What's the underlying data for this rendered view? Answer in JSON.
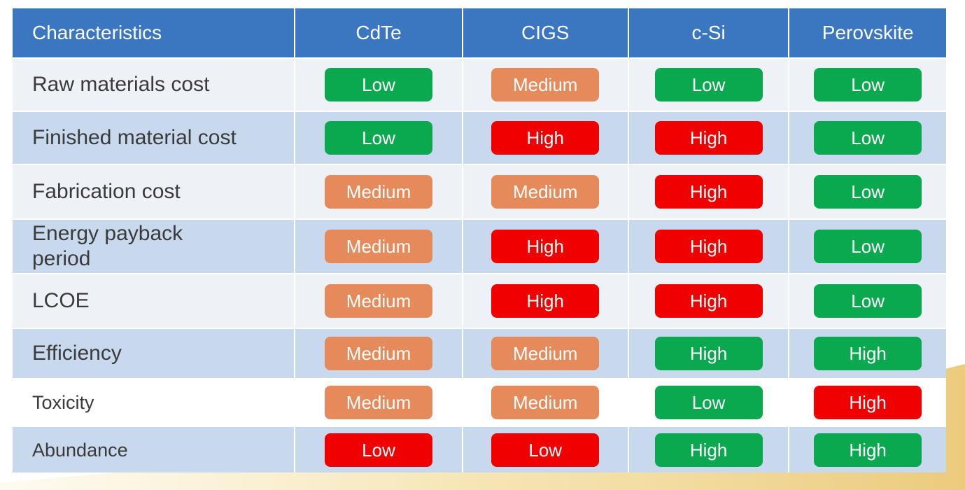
{
  "colors": {
    "header_bg": "#3a77c0",
    "row_light": "#eef2f7",
    "row_blue": "#c8d9ee",
    "row_white": "#ffffff",
    "Low": "#0aa84f",
    "Medium": "#e58a5a",
    "High": "#f00000"
  },
  "table": {
    "headers": [
      "Characteristics",
      "CdTe",
      "CIGS",
      "c-Si",
      "Perovskite"
    ],
    "rows": [
      {
        "label": "Raw materials cost",
        "values": [
          "Low",
          "Medium",
          "Low",
          "Low"
        ]
      },
      {
        "label": "Finished material cost",
        "values": [
          "Low",
          "High",
          "High",
          "Low"
        ]
      },
      {
        "label": "Fabrication cost",
        "values": [
          "Medium",
          "Medium",
          "High",
          "Low"
        ]
      },
      {
        "label": "Energy payback period",
        "values": [
          "Medium",
          "High",
          "High",
          "Low"
        ]
      },
      {
        "label": "LCOE",
        "values": [
          "Medium",
          "High",
          "High",
          "Low"
        ]
      },
      {
        "label": "Efficiency",
        "values": [
          "Medium",
          "Medium",
          "High",
          "High"
        ]
      },
      {
        "label": "Toxicity",
        "values": [
          "Medium",
          "Medium",
          "Low",
          "High"
        ]
      },
      {
        "label": "Abundance",
        "values": [
          "Low",
          "Low",
          "High",
          "High"
        ]
      }
    ],
    "pill_colors": [
      [
        "Low",
        "Medium",
        "Low",
        "Low"
      ],
      [
        "Low",
        "High",
        "High",
        "Low"
      ],
      [
        "Medium",
        "Medium",
        "High",
        "Low"
      ],
      [
        "Medium",
        "High",
        "High",
        "Low"
      ],
      [
        "Medium",
        "High",
        "High",
        "Low"
      ],
      [
        "Medium",
        "Medium",
        "Low",
        "Low"
      ],
      [
        "Medium",
        "Medium",
        "Low",
        "High"
      ],
      [
        "High",
        "High",
        "Low",
        "Low"
      ]
    ]
  }
}
